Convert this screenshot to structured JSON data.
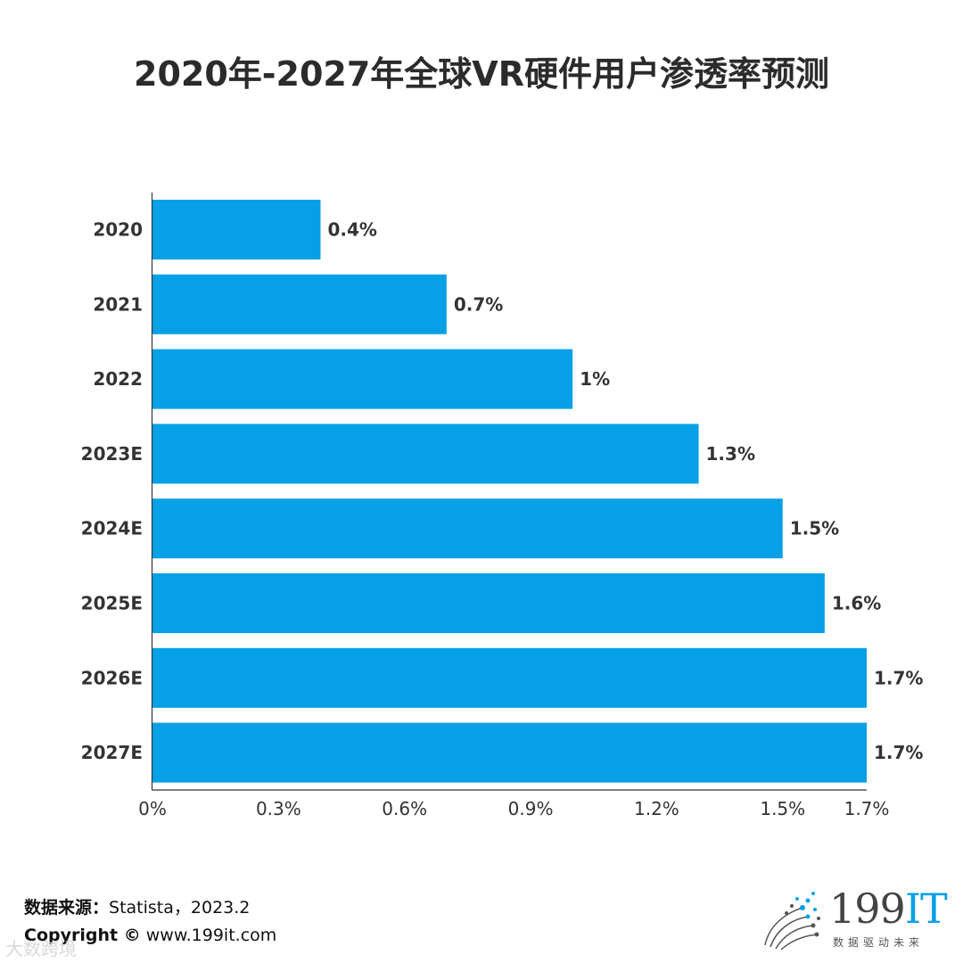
{
  "title": "2020年-2027年全球VR硬件用户渗透率预测",
  "chart_data": {
    "type": "bar",
    "orientation": "horizontal",
    "title": "2020年-2027年全球VR硬件用户渗透率预测",
    "categories": [
      "2020",
      "2021",
      "2022",
      "2023E",
      "2024E",
      "2025E",
      "2026E",
      "2027E"
    ],
    "values": [
      0.4,
      0.7,
      1.0,
      1.3,
      1.5,
      1.6,
      1.7,
      1.7
    ],
    "value_labels": [
      "0.4%",
      "0.7%",
      "1%",
      "1.3%",
      "1.5%",
      "1.6%",
      "1.7%",
      "1.7%"
    ],
    "xlim": [
      0,
      1.7
    ],
    "xticks": [
      0,
      0.3,
      0.6,
      0.9,
      1.2,
      1.5,
      1.7
    ],
    "xtick_labels": [
      "0%",
      "0.3%",
      "0.6%",
      "0.9%",
      "1.2%",
      "1.5%",
      "1.7%"
    ],
    "xlabel": "",
    "ylabel": "",
    "grid": false,
    "bar_color": "#05a0e6"
  },
  "footer": {
    "source_label": "数据来源：",
    "source_value": "Statista，2023.2",
    "copyright_label": "Copyright ©",
    "copyright_value": "www.199it.com"
  },
  "logo": {
    "text_digits": "199",
    "text_it": "IT",
    "tagline": "数据驱动未来"
  },
  "watermark": "大数跨境"
}
